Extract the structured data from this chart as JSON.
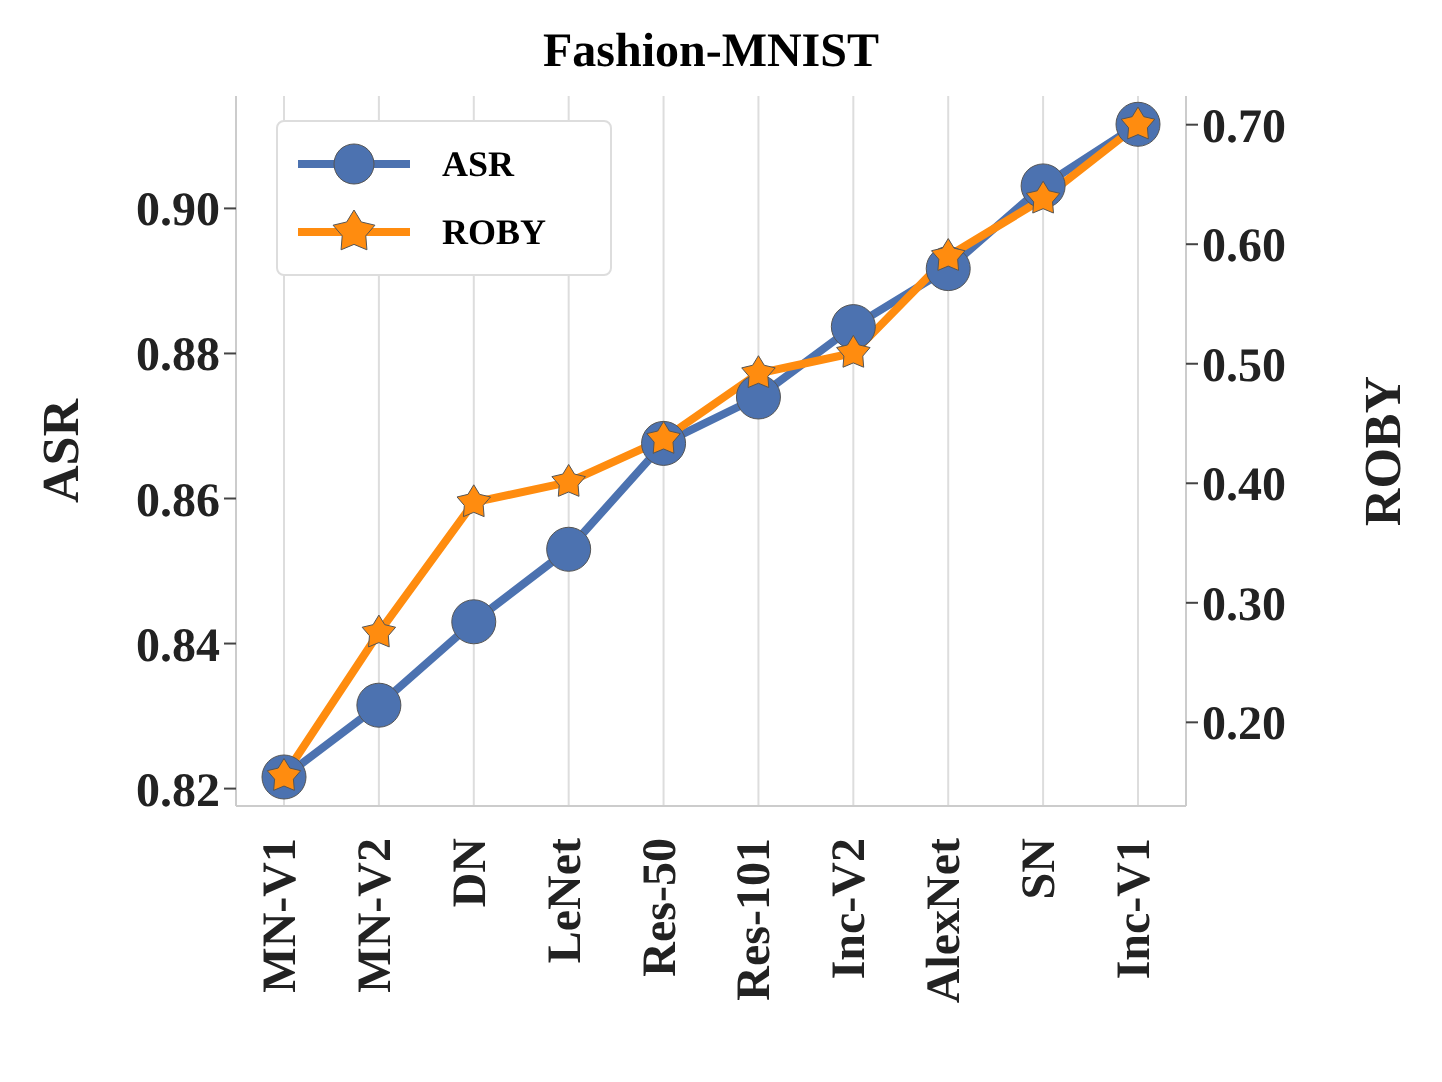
{
  "chart_data": {
    "type": "line",
    "title": "Fashion-MNIST",
    "ylabel": "ASR",
    "y2label": "ROBY",
    "categories": [
      "MN-V1",
      "MN-V2",
      "DN",
      "LeNet",
      "Res-50",
      "Res-101",
      "Inc-V2",
      "AlexNet",
      "SN",
      "Inc-V1"
    ],
    "series": [
      {
        "name": "ASR",
        "color": "#4c72b0",
        "marker": "circle",
        "values": [
          0.8216,
          0.8315,
          0.843,
          0.853,
          0.8676,
          0.874,
          0.8837,
          0.8917,
          0.9031,
          0.9116
        ]
      },
      {
        "name": "ROBY",
        "color": "#ff8c0f",
        "marker": "star",
        "axis": "y2",
        "values": [
          0.155,
          0.275,
          0.384,
          0.401,
          0.437,
          0.492,
          0.509,
          0.59,
          0.638,
          0.7
        ]
      }
    ],
    "ylim": [
      0.8176,
      0.9155
    ],
    "yticks": [
      0.82,
      0.84,
      0.86,
      0.88,
      {
        "value": 0.9,
        "label": "0.90"
      }
    ],
    "y2lim": [
      0.13,
      0.724
    ],
    "y2ticks": [
      {
        "value": 0.2,
        "label": "0.20"
      },
      {
        "value": 0.3,
        "label": "0.30"
      },
      {
        "value": 0.4,
        "label": "0.40"
      },
      {
        "value": 0.5,
        "label": "0.50"
      },
      {
        "value": 0.6,
        "label": "0.60"
      },
      {
        "value": 0.7,
        "label": "0.70"
      }
    ],
    "grid": "x",
    "legend": "top left"
  }
}
